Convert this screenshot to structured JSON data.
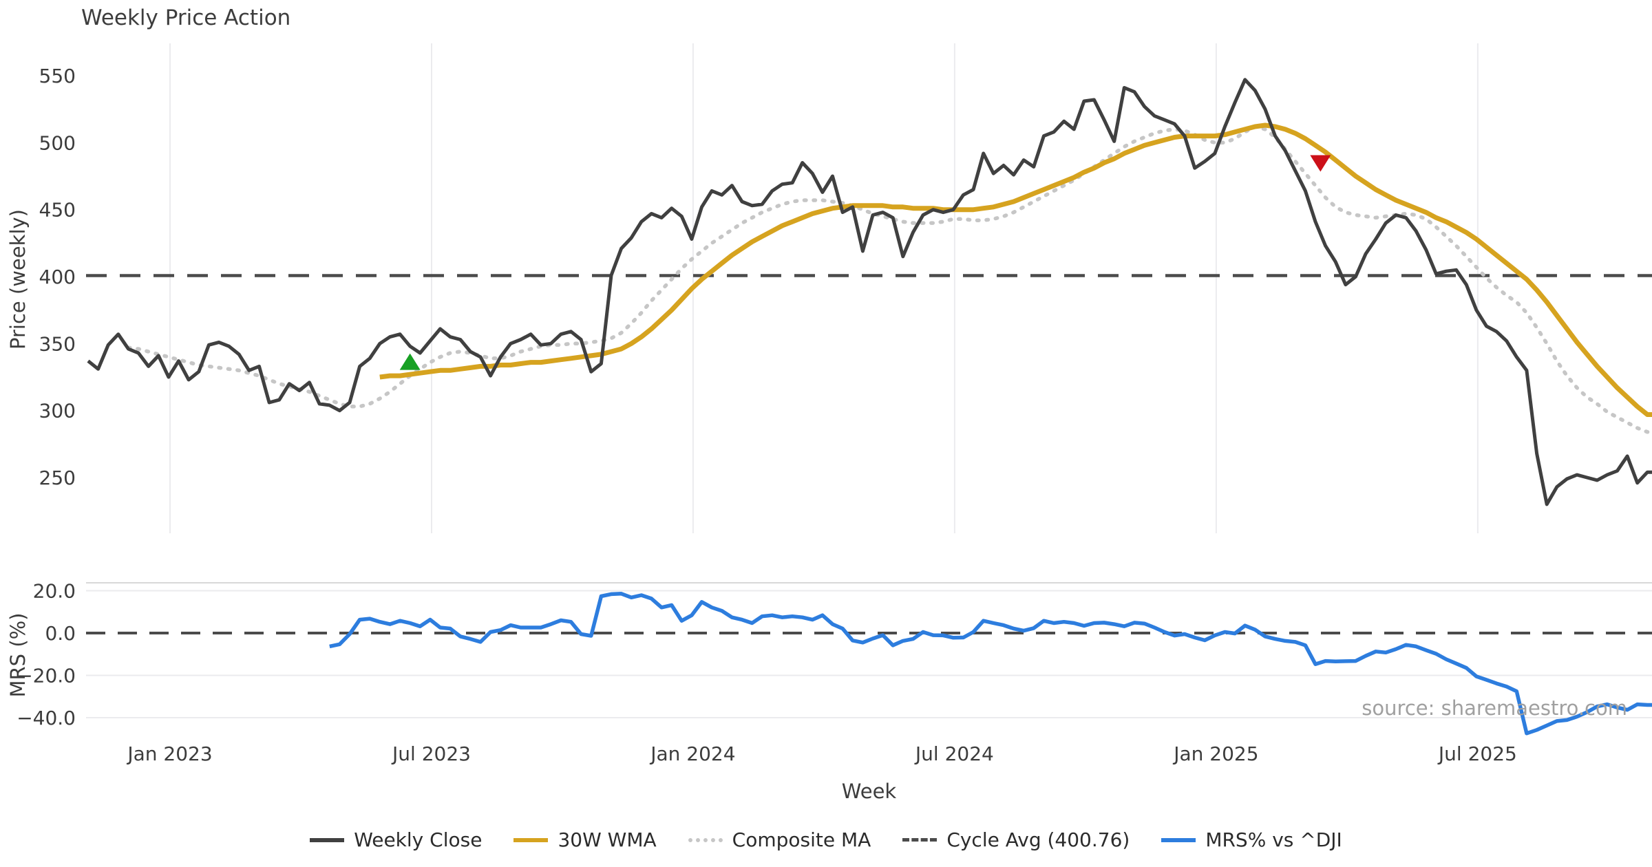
{
  "title": "Weekly Price Action",
  "source": "source: sharemaestro.com",
  "colors": {
    "weekly_close": "#404040",
    "wma30": "#d6a31f",
    "composite_ma": "#c6c6c6",
    "cycle_avg": "#4b4b4b",
    "mrs": "#2d7dde",
    "buy_marker": "#18a024",
    "sell_marker": "#cc1019",
    "gridline": "#ebebee",
    "panel_spine": "#d8d8d8",
    "tick_text": "#3c3c3c",
    "background": "#ffffff"
  },
  "legend": {
    "items": [
      {
        "label": "Weekly Close",
        "color": "#404040",
        "line": "solid"
      },
      {
        "label": "30W WMA",
        "color": "#d6a31f",
        "line": "solid"
      },
      {
        "label": "Composite MA",
        "color": "#c6c6c6",
        "line": "dotted"
      },
      {
        "label": "Cycle Avg (400.76)",
        "color": "#4b4b4b",
        "line": "dashed"
      },
      {
        "label": "MRS% vs ^DJI",
        "color": "#2d7dde",
        "line": "solid"
      }
    ]
  },
  "chart_data": [
    {
      "type": "line",
      "panel": "price",
      "title": "Weekly Price Action",
      "xlabel": "Week",
      "ylabel": "Price (weekly)",
      "ylim": [
        210,
        580
      ],
      "yticks": [
        550,
        500,
        450,
        400,
        350,
        300,
        250
      ],
      "xticks": [
        {
          "label": "Jan 2023",
          "week": 8.14
        },
        {
          "label": "Jul 2023",
          "week": 34.14
        },
        {
          "label": "Jan 2024",
          "week": 60.14
        },
        {
          "label": "Jul 2024",
          "week": 86.14
        },
        {
          "label": "Jan 2025",
          "week": 112.14
        },
        {
          "label": "Jul 2025",
          "week": 138.14
        }
      ],
      "cycle_avg": 400.76,
      "markers": [
        {
          "type": "buy-signal",
          "week": 32,
          "price": 336
        },
        {
          "type": "sell-signal",
          "week": 122.5,
          "price": 485
        }
      ],
      "series": [
        {
          "name": "Weekly Close",
          "values": [
            337,
            331,
            349,
            357,
            346,
            343,
            333,
            341,
            325,
            337,
            323,
            329,
            349,
            351,
            348,
            342,
            330,
            333,
            306,
            308,
            320,
            315,
            321,
            305,
            304,
            300,
            306,
            333,
            339,
            350,
            355,
            357,
            348,
            343,
            352,
            361,
            355,
            353,
            344,
            340,
            326,
            340,
            350,
            353,
            357,
            349,
            350,
            357,
            359,
            353,
            329,
            335,
            401,
            421,
            429,
            441,
            447,
            444,
            451,
            445,
            428,
            452,
            464,
            461,
            468,
            456,
            453,
            454,
            464,
            469,
            470,
            485,
            477,
            463,
            475,
            448,
            452,
            419,
            446,
            448,
            444,
            415,
            433,
            446,
            450,
            448,
            450,
            461,
            465,
            492,
            477,
            483,
            476,
            487,
            482,
            505,
            508,
            516,
            510,
            531,
            532,
            517,
            501,
            541,
            538,
            527,
            520,
            517,
            514,
            505,
            481,
            486,
            492,
            512,
            530,
            547,
            539,
            525,
            505,
            494,
            479,
            464,
            441,
            423,
            411,
            394,
            400,
            417,
            428,
            440,
            446,
            444,
            434,
            420,
            402,
            404,
            405,
            394,
            375,
            363,
            359,
            352,
            340,
            330,
            268,
            230,
            243,
            249,
            252,
            250,
            248,
            252,
            255,
            266,
            246,
            254
          ]
        },
        {
          "name": "30W WMA",
          "values": [
            null,
            null,
            null,
            null,
            null,
            null,
            null,
            null,
            null,
            null,
            null,
            null,
            null,
            null,
            null,
            null,
            null,
            null,
            null,
            null,
            null,
            null,
            null,
            null,
            null,
            null,
            null,
            null,
            null,
            325,
            326,
            326,
            327,
            328,
            329,
            330,
            330,
            331,
            332,
            333,
            333,
            334,
            334,
            335,
            336,
            336,
            337,
            338,
            339,
            340,
            341,
            342,
            344,
            346,
            350,
            355,
            361,
            368,
            375,
            383,
            391,
            398,
            404,
            410,
            416,
            421,
            426,
            430,
            434,
            438,
            441,
            444,
            447,
            449,
            451,
            452,
            453,
            453,
            453,
            453,
            452,
            452,
            451,
            451,
            451,
            450,
            450,
            450,
            450,
            451,
            452,
            454,
            456,
            459,
            462,
            465,
            468,
            471,
            474,
            478,
            481,
            485,
            488,
            492,
            495,
            498,
            500,
            502,
            504,
            505,
            505,
            505,
            505,
            506,
            508,
            510,
            512,
            513,
            512,
            510,
            507,
            503,
            498,
            493,
            487,
            481,
            475,
            470,
            465,
            461,
            457,
            454,
            451,
            448,
            444,
            441,
            437,
            433,
            428,
            422,
            416,
            410,
            404,
            398,
            390,
            381,
            371,
            361,
            351,
            342,
            333,
            325,
            317,
            310,
            303,
            297
          ]
        },
        {
          "name": "Composite MA",
          "values": [
            null,
            null,
            null,
            null,
            347,
            346,
            344,
            342,
            340,
            338,
            336,
            334,
            333,
            332,
            331,
            330,
            328,
            326,
            323,
            320,
            318,
            316,
            314,
            311,
            308,
            305,
            303,
            303,
            305,
            309,
            314,
            320,
            326,
            331,
            336,
            340,
            343,
            344,
            343,
            341,
            339,
            339,
            341,
            344,
            346,
            348,
            349,
            349,
            350,
            350,
            351,
            352,
            354,
            358,
            365,
            373,
            382,
            390,
            398,
            406,
            413,
            419,
            425,
            430,
            435,
            440,
            444,
            448,
            451,
            454,
            456,
            457,
            457,
            457,
            456,
            455,
            453,
            450,
            447,
            445,
            443,
            441,
            440,
            440,
            440,
            441,
            443,
            443,
            442,
            442,
            443,
            445,
            448,
            452,
            456,
            460,
            464,
            468,
            472,
            477,
            482,
            487,
            492,
            497,
            501,
            504,
            507,
            509,
            510,
            509,
            506,
            502,
            500,
            500,
            503,
            508,
            512,
            510,
            504,
            495,
            486,
            477,
            468,
            459,
            452,
            448,
            446,
            445,
            444,
            445,
            446,
            447,
            446,
            443,
            437,
            430,
            423,
            415,
            407,
            399,
            392,
            386,
            381,
            373,
            362,
            350,
            337,
            326,
            317,
            310,
            305,
            299,
            295,
            291,
            287,
            284
          ]
        }
      ]
    },
    {
      "type": "line",
      "panel": "mrs",
      "ylabel": "MRS (%)",
      "yticks": [
        {
          "label": "20.0",
          "value": 20
        },
        {
          "label": "0.0",
          "value": 0
        },
        {
          "label": "−20.0",
          "value": -20
        },
        {
          "label": "−40.0",
          "value": -40
        }
      ],
      "zero_line": 0,
      "series": [
        {
          "name": "MRS% vs ^DJI",
          "values": [
            null,
            null,
            null,
            null,
            null,
            null,
            null,
            null,
            null,
            null,
            null,
            null,
            null,
            null,
            null,
            null,
            null,
            null,
            null,
            null,
            null,
            null,
            null,
            null,
            -6.3,
            -5.3,
            -0.5,
            6.3,
            6.8,
            5.3,
            4.2,
            5.8,
            4.7,
            3.2,
            6.3,
            2.6,
            2.1,
            -1.6,
            -2.8,
            -4.2,
            0.5,
            1.4,
            3.7,
            2.6,
            2.6,
            2.6,
            4.2,
            6.0,
            5.3,
            -0.5,
            -1.3,
            17.4,
            18.4,
            18.6,
            16.8,
            17.9,
            16.3,
            12.1,
            13.2,
            5.8,
            8.4,
            14.7,
            12.1,
            10.5,
            7.4,
            6.3,
            4.7,
            7.9,
            8.4,
            7.4,
            7.9,
            7.4,
            6.3,
            8.4,
            4.2,
            2.1,
            -3.5,
            -4.5,
            -2.6,
            -1.0,
            -5.8,
            -3.7,
            -2.8,
            0.5,
            -1.0,
            -1.1,
            -2.2,
            -2.1,
            0.5,
            5.8,
            4.7,
            3.7,
            2.1,
            1.1,
            2.3,
            5.8,
            4.7,
            5.3,
            4.7,
            3.4,
            4.7,
            4.9,
            4.2,
            3.2,
            4.9,
            4.5,
            2.6,
            0.5,
            -1.2,
            -0.5,
            -2.1,
            -3.4,
            -1.1,
            0.5,
            -0.2,
            3.5,
            1.6,
            -1.6,
            -2.8,
            -3.7,
            -4.2,
            -5.8,
            -14.7,
            -13.2,
            -13.4,
            -13.3,
            -13.2,
            -10.8,
            -8.7,
            -9.2,
            -7.6,
            -5.6,
            -6.3,
            -8.1,
            -9.8,
            -12.4,
            -14.4,
            -16.5,
            -20.5,
            -22.1,
            -23.8,
            -25.3,
            -27.5,
            -47.4,
            -45.8,
            -43.7,
            -41.6,
            -41.1,
            -39.5,
            -37.4,
            -34.7,
            -33.7,
            -35.2,
            -36.3,
            -33.7,
            -34.0
          ]
        }
      ]
    }
  ]
}
